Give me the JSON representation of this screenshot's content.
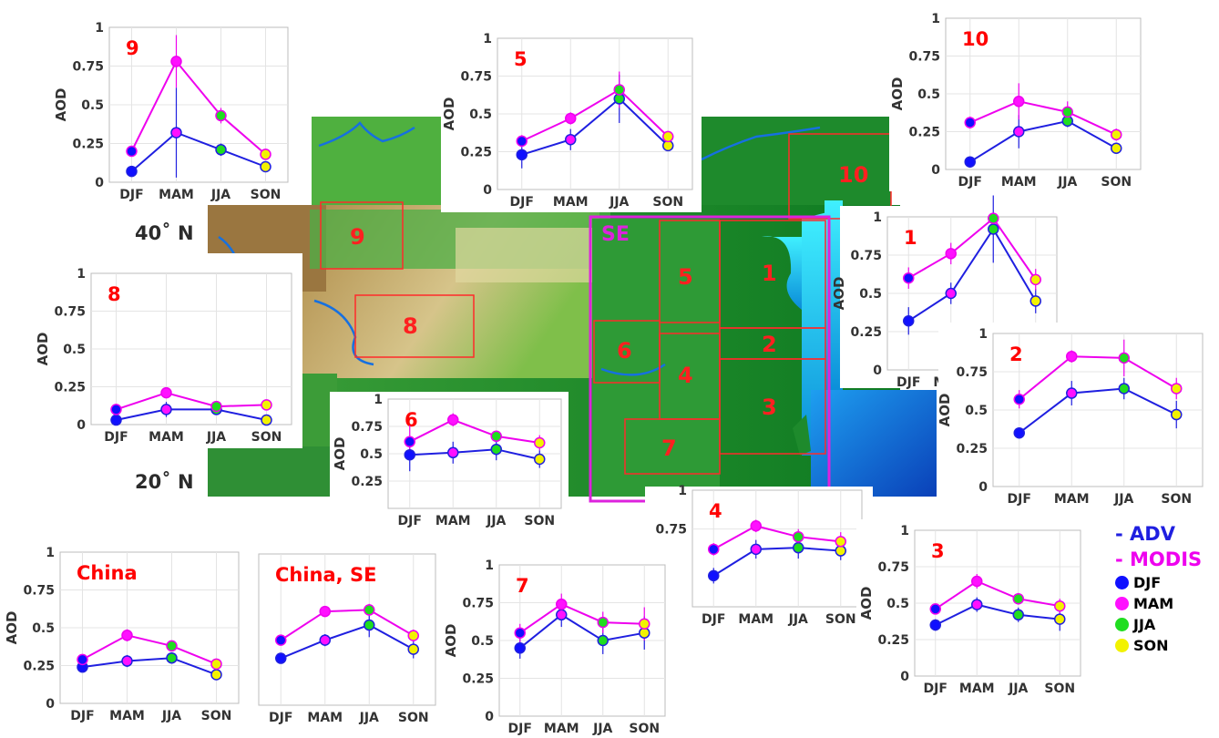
{
  "colors": {
    "adv": "#1f1fe0",
    "modis": "#ee00ee",
    "djf": "#1010ff",
    "mam": "#ff10ff",
    "jja": "#20dd20",
    "son": "#f2f200",
    "label": "#ff0000",
    "se_box": "#dd22dd"
  },
  "map": {
    "lat_40": "40˚ N",
    "lat_20": "20˚ N",
    "se_label": "SE",
    "regions": [
      {
        "id": "region-1",
        "label": "1"
      },
      {
        "id": "region-2",
        "label": "2"
      },
      {
        "id": "region-3",
        "label": "3"
      },
      {
        "id": "region-4",
        "label": "4"
      },
      {
        "id": "region-5",
        "label": "5"
      },
      {
        "id": "region-6",
        "label": "6"
      },
      {
        "id": "region-7",
        "label": "7"
      },
      {
        "id": "region-8",
        "label": "8"
      },
      {
        "id": "region-9",
        "label": "9"
      },
      {
        "id": "region-10",
        "label": "10"
      }
    ]
  },
  "legend": {
    "adv": "- ADV",
    "modis": "- MODIS",
    "seasons": [
      "DJF",
      "MAM",
      "JJA",
      "SON"
    ]
  },
  "chart_data": [
    {
      "type": "line",
      "title": "9",
      "ylabel": "AOD",
      "categories": [
        "DJF",
        "MAM",
        "JJA",
        "SON"
      ],
      "ylim": [
        0,
        1
      ],
      "yticks": [
        "0",
        "0.25",
        "0.5",
        "0.75",
        "1"
      ],
      "series": [
        {
          "name": "ADV",
          "values": [
            0.07,
            0.32,
            0.21,
            0.1
          ],
          "errors": [
            0.0,
            0.29,
            0.04,
            0.02
          ]
        },
        {
          "name": "MODIS",
          "values": [
            0.2,
            0.78,
            0.43,
            0.18
          ],
          "errors": [
            0.03,
            0.17,
            0.05,
            0.03
          ]
        }
      ]
    },
    {
      "type": "line",
      "title": "5",
      "ylabel": "AOD",
      "categories": [
        "DJF",
        "MAM",
        "JJA",
        "SON"
      ],
      "ylim": [
        0,
        1
      ],
      "yticks": [
        "0",
        "0.25",
        "0.5",
        "0.75",
        "1"
      ],
      "series": [
        {
          "name": "ADV",
          "values": [
            0.23,
            0.33,
            0.6,
            0.29
          ],
          "errors": [
            0.09,
            0.07,
            0.16,
            0.03
          ]
        },
        {
          "name": "MODIS",
          "values": [
            0.32,
            0.47,
            0.66,
            0.35
          ],
          "errors": [
            0.04,
            0.04,
            0.12,
            0.03
          ]
        }
      ]
    },
    {
      "type": "line",
      "title": "10",
      "ylabel": "AOD",
      "categories": [
        "DJF",
        "MAM",
        "JJA",
        "SON"
      ],
      "ylim": [
        0,
        1
      ],
      "yticks": [
        "0",
        "0.25",
        "0.5",
        "0.75",
        "1"
      ],
      "series": [
        {
          "name": "ADV",
          "values": [
            0.05,
            0.25,
            0.32,
            0.14
          ],
          "errors": [
            0.0,
            0.11,
            0.04,
            0.03
          ]
        },
        {
          "name": "MODIS",
          "values": [
            0.31,
            0.45,
            0.38,
            0.23
          ],
          "errors": [
            0.04,
            0.12,
            0.07,
            0.04
          ]
        }
      ]
    },
    {
      "type": "line",
      "title": "1",
      "ylabel": "AOD",
      "categories": [
        "DJF",
        "MAM",
        "JJA",
        "SON"
      ],
      "ylim": [
        0,
        1
      ],
      "yticks": [
        "0",
        "0.25",
        "0.5",
        "0.75",
        "1"
      ],
      "series": [
        {
          "name": "ADV",
          "values": [
            0.32,
            0.5,
            0.92,
            0.45
          ],
          "errors": [
            0.09,
            0.07,
            0.22,
            0.08
          ]
        },
        {
          "name": "MODIS",
          "values": [
            0.6,
            0.76,
            0.99,
            0.59
          ],
          "errors": [
            0.07,
            0.07,
            0.02,
            0.07
          ]
        }
      ]
    },
    {
      "type": "line",
      "title": "8",
      "ylabel": "AOD",
      "categories": [
        "DJF",
        "MAM",
        "JJA",
        "SON"
      ],
      "ylim": [
        0,
        1
      ],
      "yticks": [
        "0",
        "0.25",
        "0.5",
        "0.75",
        "1"
      ],
      "series": [
        {
          "name": "ADV",
          "values": [
            0.03,
            0.1,
            0.1,
            0.03
          ],
          "errors": [
            0.0,
            0.05,
            0.02,
            0.0
          ]
        },
        {
          "name": "MODIS",
          "values": [
            0.1,
            0.21,
            0.12,
            0.13
          ],
          "errors": [
            0.02,
            0.02,
            0.02,
            0.02
          ]
        }
      ]
    },
    {
      "type": "line",
      "title": "2",
      "ylabel": "AOD",
      "categories": [
        "DJF",
        "MAM",
        "JJA",
        "SON"
      ],
      "ylim": [
        0,
        1
      ],
      "yticks": [
        "0",
        "0.25",
        "0.5",
        "0.75",
        "1"
      ],
      "series": [
        {
          "name": "ADV",
          "values": [
            0.35,
            0.61,
            0.64,
            0.47
          ],
          "errors": [
            0.02,
            0.08,
            0.07,
            0.09
          ]
        },
        {
          "name": "MODIS",
          "values": [
            0.57,
            0.85,
            0.84,
            0.64
          ],
          "errors": [
            0.06,
            0.04,
            0.12,
            0.07
          ]
        }
      ]
    },
    {
      "type": "line",
      "title": "6",
      "ylabel": "AOD",
      "categories": [
        "DJF",
        "MAM",
        "JJA",
        "SON"
      ],
      "ylim": [
        0,
        1
      ],
      "yticks": [
        "0.25",
        "0.5",
        "0.75",
        "1"
      ],
      "series": [
        {
          "name": "ADV",
          "values": [
            0.49,
            0.51,
            0.54,
            0.45
          ],
          "errors": [
            0.15,
            0.1,
            0.1,
            0.08
          ]
        },
        {
          "name": "MODIS",
          "values": [
            0.61,
            0.81,
            0.66,
            0.6
          ],
          "errors": [
            0.15,
            0.06,
            0.05,
            0.07
          ]
        }
      ]
    },
    {
      "type": "line",
      "title": "4",
      "ylabel": "",
      "categories": [
        "DJF",
        "MAM",
        "JJA",
        "SON"
      ],
      "ylim": [
        0.25,
        1
      ],
      "yticks": [
        "0.75",
        "1"
      ],
      "series": [
        {
          "name": "ADV",
          "values": [
            0.45,
            0.62,
            0.63,
            0.61
          ],
          "errors": [
            0.05,
            0.06,
            0.07,
            0.06
          ]
        },
        {
          "name": "MODIS",
          "values": [
            0.62,
            0.77,
            0.7,
            0.67
          ],
          "errors": [
            0.04,
            0.04,
            0.05,
            0.06
          ]
        }
      ]
    },
    {
      "type": "line",
      "title": "3",
      "ylabel": "AOD",
      "categories": [
        "DJF",
        "MAM",
        "JJA",
        "SON"
      ],
      "ylim": [
        0,
        1
      ],
      "yticks": [
        "0",
        "0.25",
        "0.5",
        "0.75",
        "1"
      ],
      "series": [
        {
          "name": "ADV",
          "values": [
            0.35,
            0.49,
            0.42,
            0.39
          ],
          "errors": [
            0.04,
            0.05,
            0.05,
            0.08
          ]
        },
        {
          "name": "MODIS",
          "values": [
            0.46,
            0.65,
            0.53,
            0.48
          ],
          "errors": [
            0.03,
            0.05,
            0.04,
            0.05
          ]
        }
      ]
    },
    {
      "type": "line",
      "title": "China",
      "ylabel": "AOD",
      "categories": [
        "DJF",
        "MAM",
        "JJA",
        "SON"
      ],
      "ylim": [
        0,
        1
      ],
      "yticks": [
        "0",
        "0.25",
        "0.5",
        "0.75",
        "1"
      ],
      "series": [
        {
          "name": "ADV",
          "values": [
            0.24,
            0.28,
            0.3,
            0.19
          ],
          "errors": [
            0.02,
            0.04,
            0.03,
            0.02
          ]
        },
        {
          "name": "MODIS",
          "values": [
            0.29,
            0.45,
            0.38,
            0.26
          ],
          "errors": [
            0.02,
            0.04,
            0.03,
            0.02
          ]
        }
      ]
    },
    {
      "type": "line",
      "title": "China, SE",
      "ylabel": "",
      "categories": [
        "DJF",
        "MAM",
        "JJA",
        "SON"
      ],
      "ylim": [
        0,
        1
      ],
      "yticks": [],
      "series": [
        {
          "name": "ADV",
          "values": [
            0.31,
            0.43,
            0.53,
            0.37
          ],
          "errors": [
            0.03,
            0.04,
            0.08,
            0.06
          ]
        },
        {
          "name": "MODIS",
          "values": [
            0.43,
            0.62,
            0.63,
            0.46
          ],
          "errors": [
            0.02,
            0.03,
            0.04,
            0.04
          ]
        }
      ]
    },
    {
      "type": "line",
      "title": "7",
      "ylabel": "AOD",
      "categories": [
        "DJF",
        "MAM",
        "JJA",
        "SON"
      ],
      "ylim": [
        0,
        1
      ],
      "yticks": [
        "0",
        "0.25",
        "0.5",
        "0.75",
        "1"
      ],
      "series": [
        {
          "name": "ADV",
          "values": [
            0.45,
            0.67,
            0.5,
            0.55
          ],
          "errors": [
            0.07,
            0.08,
            0.09,
            0.11
          ]
        },
        {
          "name": "MODIS",
          "values": [
            0.55,
            0.74,
            0.62,
            0.61
          ],
          "errors": [
            0.06,
            0.07,
            0.07,
            0.11
          ]
        }
      ]
    }
  ]
}
